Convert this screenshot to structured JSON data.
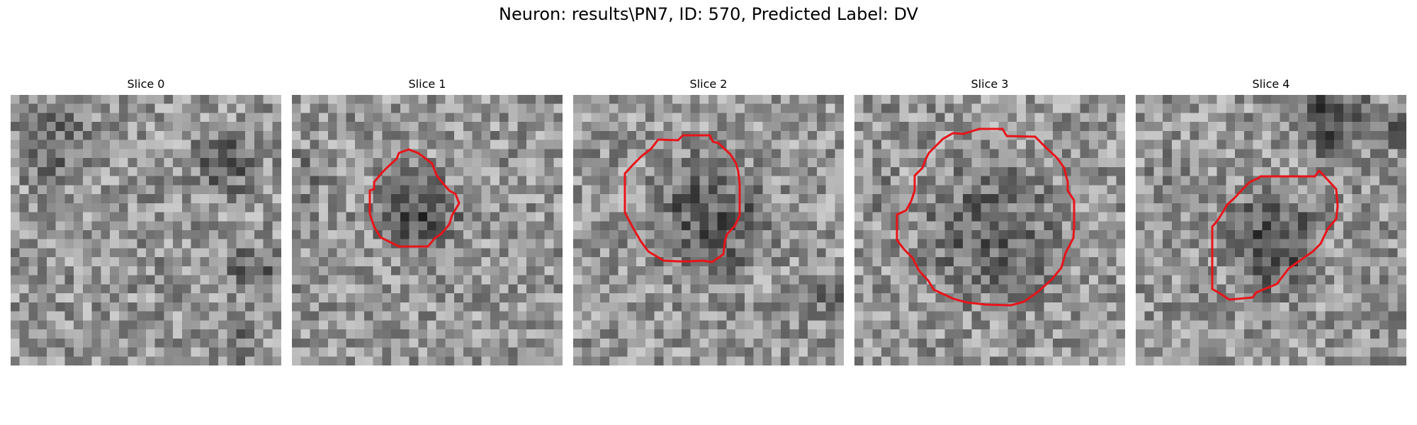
{
  "title": "Neuron: results\\PN7, ID: 570, Predicted Label: DV",
  "panels": [
    {
      "label": "Slice 0",
      "has_contour": false
    },
    {
      "label": "Slice 1",
      "has_contour": true
    },
    {
      "label": "Slice 2",
      "has_contour": true
    },
    {
      "label": "Slice 3",
      "has_contour": true
    },
    {
      "label": "Slice 4",
      "has_contour": true
    }
  ],
  "colors": {
    "contour": "#e8141a",
    "background": "#ffffff"
  }
}
